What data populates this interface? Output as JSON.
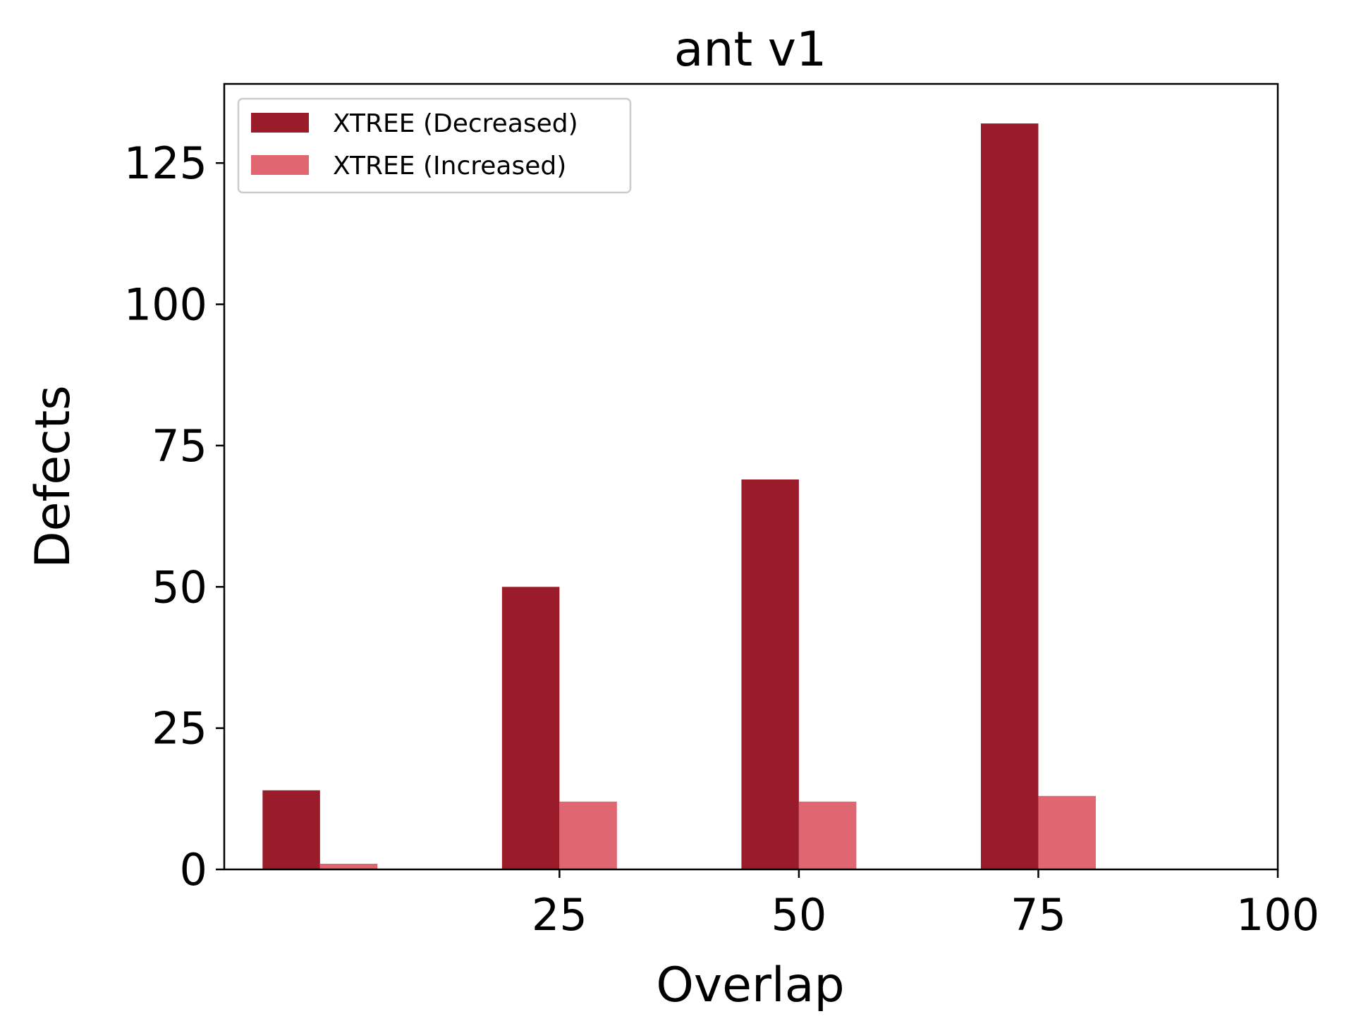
{
  "chart_data": {
    "type": "bar",
    "title": "ant v1",
    "xlabel": "Overlap",
    "ylabel": "Defects",
    "xlim": [
      -10,
      100
    ],
    "ylim": [
      0,
      139
    ],
    "x_ticks": [
      25,
      50,
      75,
      100
    ],
    "y_ticks": [
      0,
      25,
      50,
      75,
      100,
      125
    ],
    "grid": false,
    "legend_position": "top-left",
    "colors": {
      "decreased": "#9a1b2a",
      "increased": "#e06671"
    },
    "x": [
      0,
      25,
      50,
      75
    ],
    "series": [
      {
        "name": "XTREE (Decreased)",
        "values": [
          14,
          50,
          69,
          132
        ]
      },
      {
        "name": "XTREE (Increased)",
        "values": [
          1,
          12,
          12,
          13
        ]
      }
    ]
  }
}
